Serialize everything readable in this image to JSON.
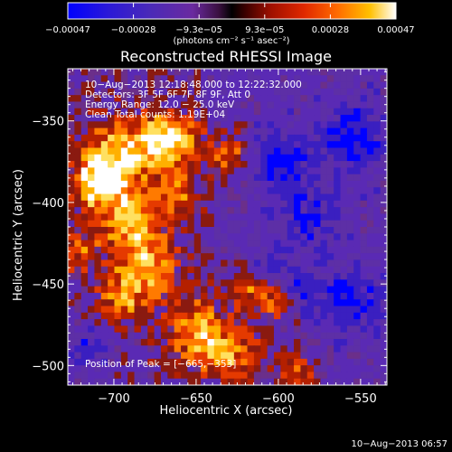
{
  "chart_data": {
    "type": "heatmap",
    "title": "Reconstructed RHESSI Image",
    "xlabel": "Heliocentric X (arcsec)",
    "ylabel": "Heliocentric Y (arcsec)",
    "xlim": [
      -728,
      -534
    ],
    "ylim": [
      -512,
      -318
    ],
    "x_ticks": [
      -700,
      -650,
      -600,
      -550
    ],
    "y_ticks": [
      -350,
      -400,
      -450,
      -500
    ],
    "x_tick_labels": [
      "−700",
      "−650",
      "−600",
      "−550"
    ],
    "y_tick_labels": [
      "−350",
      "−400",
      "−450",
      "−500"
    ],
    "colorbar": {
      "min": -0.00047,
      "max": 0.00047,
      "tick_labels": [
        "−0.00047",
        "−0.00028",
        "−9.3e−05",
        "9.3e−05",
        "0.00028",
        "0.00047"
      ],
      "unit_label": "(photons cm⁻² s⁻¹ asec⁻²)"
    },
    "peak": {
      "x": -665,
      "y": -353
    },
    "info_lines": [
      "10−Aug−2013 12:18:48.000 to 12:22:32.000",
      "Detectors: 3F 5F 6F 7F 8F 9F, Att 0",
      "Energy Range: 12.0 − 25.0 keV",
      "Clean    Total counts: 1.19E+04"
    ],
    "peak_label": "Position of Peak = [−665,−353]"
  },
  "footer_timestamp": "10−Aug−2013 06:57",
  "colors": {
    "background": "#000000",
    "foreground": "#ffffff",
    "colormap": [
      "#0000ff",
      "#3a1fc0",
      "#5d2fa6",
      "#5a2ab4",
      "#6b2f8a",
      "#8a1a10",
      "#b42000",
      "#e53a00",
      "#ff7a00",
      "#ffb000",
      "#ffe060",
      "#ffffff"
    ]
  }
}
